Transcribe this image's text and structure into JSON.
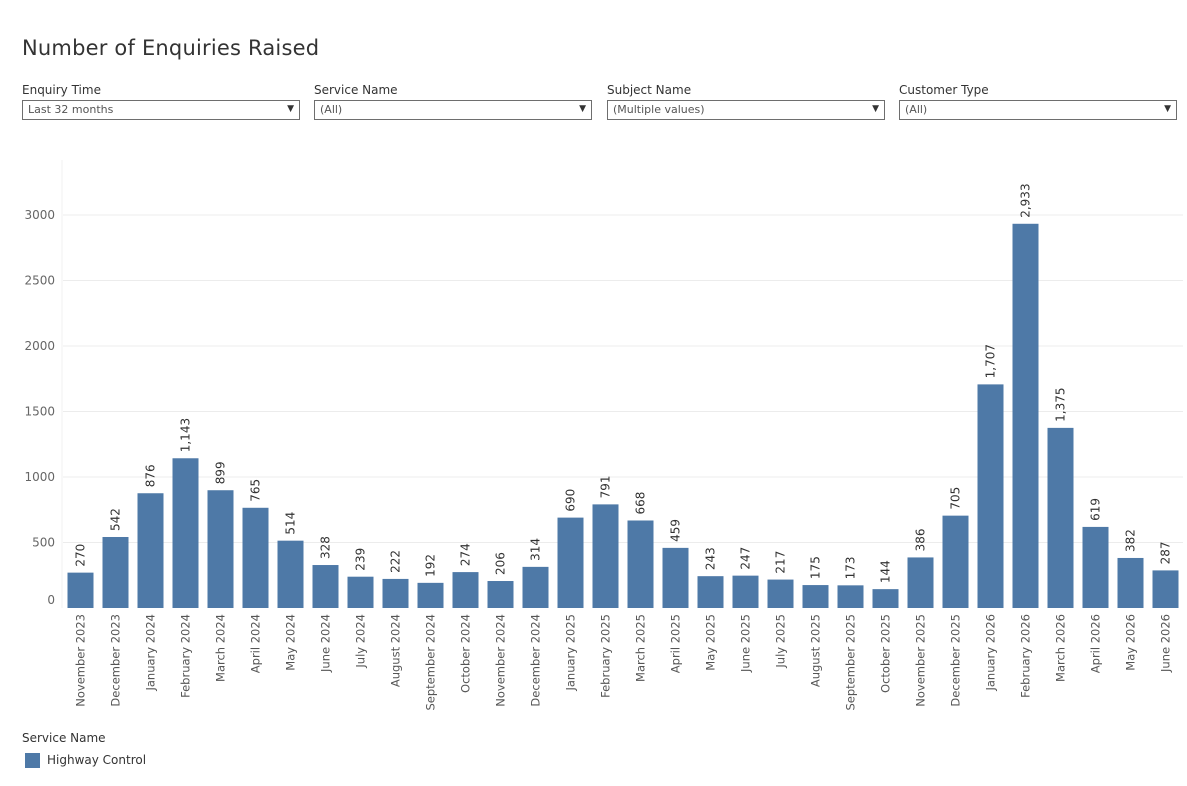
{
  "page_title": "Number of Enquiries Raised",
  "filters": [
    {
      "label": "Enquiry Time",
      "value": "Last 32 months"
    },
    {
      "label": "Service Name",
      "value": "(All)"
    },
    {
      "label": "Subject Name",
      "value": "(Multiple values)"
    },
    {
      "label": "Customer Type",
      "value": "(All)"
    }
  ],
  "dropdown_icon": "caret-down",
  "legend": {
    "title": "Service Name",
    "items": [
      {
        "label": "Highway Control",
        "color": "#4e79a7"
      }
    ]
  },
  "chart_data": {
    "type": "bar",
    "categories": [
      "November 2023",
      "December 2023",
      "January 2024",
      "February 2024",
      "March 2024",
      "April 2024",
      "May 2024",
      "June 2024",
      "July 2024",
      "August 2024",
      "September 2024",
      "October 2024",
      "November 2024",
      "December 2024",
      "January 2025",
      "February 2025",
      "March 2025",
      "April 2025",
      "May 2025",
      "June 2025",
      "July 2025",
      "August 2025",
      "September 2025",
      "October 2025",
      "November 2025",
      "December 2025",
      "January 2026",
      "February 2026",
      "March 2026",
      "April 2026",
      "May 2026",
      "June 2026"
    ],
    "series": [
      {
        "name": "Highway Control",
        "color": "#4e79a7",
        "values": [
          270,
          542,
          876,
          1143,
          899,
          765,
          514,
          328,
          239,
          222,
          192,
          274,
          206,
          314,
          690,
          791,
          668,
          459,
          243,
          247,
          217,
          175,
          173,
          144,
          386,
          705,
          1707,
          2933,
          1375,
          619,
          382,
          287
        ]
      }
    ],
    "data_labels": [
      "270",
      "542",
      "876",
      "1,143",
      "899",
      "765",
      "514",
      "328",
      "239",
      "222",
      "192",
      "274",
      "206",
      "314",
      "690",
      "791",
      "668",
      "459",
      "243",
      "247",
      "217",
      "175",
      "173",
      "144",
      "386",
      "705",
      "1,707",
      "2,933",
      "1,375",
      "619",
      "382",
      "287"
    ],
    "y_ticks": [
      "0",
      "500",
      "1000",
      "1500",
      "2000",
      "2500",
      "3000"
    ],
    "y_tick_values": [
      0,
      500,
      1000,
      1500,
      2000,
      2500,
      3000
    ],
    "ylim": [
      0,
      3400
    ],
    "xlabel": "",
    "ylabel": "",
    "grid": true
  }
}
